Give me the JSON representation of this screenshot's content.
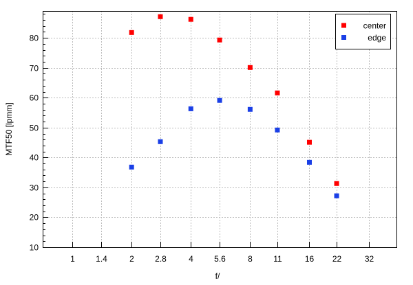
{
  "chart_data": {
    "type": "scatter",
    "title": "",
    "xlabel": "f/",
    "ylabel": "MTF50 [lpmm]",
    "x_scale": "log2",
    "x_ticks": [
      "1",
      "1.4",
      "2",
      "2.8",
      "4",
      "5.6",
      "8",
      "11",
      "16",
      "22",
      "32"
    ],
    "x_tick_values": [
      1,
      1.4,
      2,
      2.8,
      4,
      5.6,
      8,
      11,
      16,
      22,
      32
    ],
    "xlim": [
      0.707,
      44.3
    ],
    "y_ticks": [
      "10",
      "20",
      "30",
      "40",
      "50",
      "60",
      "70",
      "80"
    ],
    "ylim": [
      10,
      89
    ],
    "grid": true,
    "legend_position": "top-right",
    "x": [
      2,
      2.8,
      4,
      5.6,
      8,
      11,
      16,
      22
    ],
    "series": [
      {
        "name": "center",
        "color": "#ff0000",
        "values": [
          81.8,
          87.1,
          86.2,
          79.3,
          70.1,
          61.6,
          45.1,
          31.3
        ]
      },
      {
        "name": "edge",
        "color": "#1a3fe6",
        "values": [
          36.8,
          45.3,
          56.3,
          59.1,
          56.1,
          49.2,
          38.4,
          27.2
        ]
      }
    ]
  }
}
